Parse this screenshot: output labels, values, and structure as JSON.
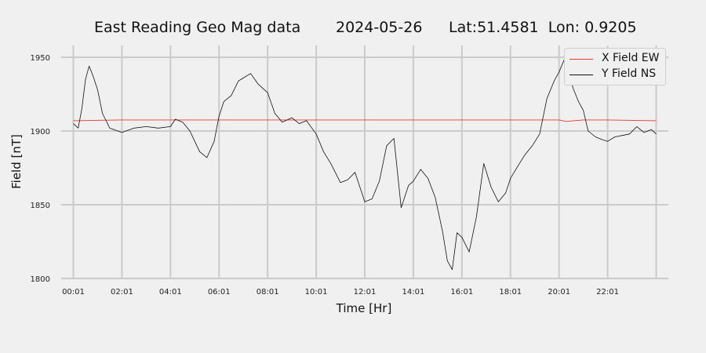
{
  "title": {
    "main": "East Reading Geo Mag data",
    "date": "2024-05-26",
    "location": "Lat:51.4581  Lon: 0.9205"
  },
  "chart_data": {
    "type": "line",
    "xlabel": "Time  [Hr]",
    "ylabel": "Field  [nT]",
    "x_ticks": [
      "00:01",
      "02:01",
      "04:01",
      "06:01",
      "08:01",
      "10:01",
      "12:01",
      "14:01",
      "16:01",
      "18:01",
      "20:01",
      "22:01"
    ],
    "xlim": [
      -0.5,
      24.5
    ],
    "ylim": [
      1800,
      1958
    ],
    "y_ticks": [
      1800,
      1850,
      1900,
      1950
    ],
    "grid": true,
    "legend_position": "top-right",
    "series": [
      {
        "name": "X Field EW",
        "color": "#e8382c",
        "x": [
          0,
          2,
          4,
          6,
          8,
          10,
          12,
          14,
          16,
          18,
          20,
          20.3,
          20.6,
          21,
          22,
          24
        ],
        "values": [
          1907,
          1907.5,
          1907.5,
          1907.5,
          1907.5,
          1907.5,
          1907.5,
          1907.5,
          1907.5,
          1907.5,
          1907.5,
          1906.5,
          1907,
          1907.5,
          1907.5,
          1907
        ]
      },
      {
        "name": "Y Field NS",
        "color": "#111111",
        "x": [
          0,
          0.2,
          0.35,
          0.5,
          0.65,
          0.8,
          1.0,
          1.2,
          1.5,
          2.0,
          2.5,
          3.0,
          3.5,
          4.0,
          4.2,
          4.5,
          4.8,
          5.0,
          5.2,
          5.5,
          5.8,
          6.0,
          6.2,
          6.5,
          6.8,
          7.0,
          7.3,
          7.6,
          8.0,
          8.3,
          8.6,
          9.0,
          9.3,
          9.6,
          10.0,
          10.3,
          10.6,
          11.0,
          11.3,
          11.6,
          12.0,
          12.3,
          12.6,
          12.9,
          13.2,
          13.5,
          13.8,
          14.0,
          14.3,
          14.6,
          14.9,
          15.2,
          15.4,
          15.6,
          15.8,
          16.0,
          16.3,
          16.6,
          16.9,
          17.2,
          17.5,
          17.8,
          18.0,
          18.3,
          18.6,
          18.9,
          19.2,
          19.5,
          19.8,
          20.0,
          20.2,
          20.4,
          20.6,
          20.8,
          21.0,
          21.2,
          21.5,
          21.8,
          22.0,
          22.3,
          22.6,
          22.9,
          23.2,
          23.5,
          23.8,
          24.0
        ],
        "values": [
          1905,
          1902,
          1915,
          1935,
          1944,
          1938,
          1928,
          1912,
          1902,
          1899,
          1902,
          1903,
          1902,
          1903,
          1908,
          1906,
          1900,
          1893,
          1886,
          1882,
          1893,
          1910,
          1920,
          1924,
          1934,
          1936,
          1939,
          1932,
          1926,
          1912,
          1906,
          1909,
          1905,
          1907,
          1898,
          1886,
          1878,
          1865,
          1867,
          1872,
          1852,
          1854,
          1866,
          1890,
          1895,
          1848,
          1863,
          1866,
          1874,
          1868,
          1855,
          1832,
          1812,
          1806,
          1831,
          1828,
          1818,
          1842,
          1878,
          1862,
          1852,
          1858,
          1868,
          1876,
          1884,
          1890,
          1898,
          1922,
          1934,
          1940,
          1948,
          1938,
          1928,
          1920,
          1914,
          1900,
          1896,
          1894,
          1893,
          1896,
          1897,
          1898,
          1903,
          1899,
          1901,
          1898
        ]
      }
    ]
  }
}
